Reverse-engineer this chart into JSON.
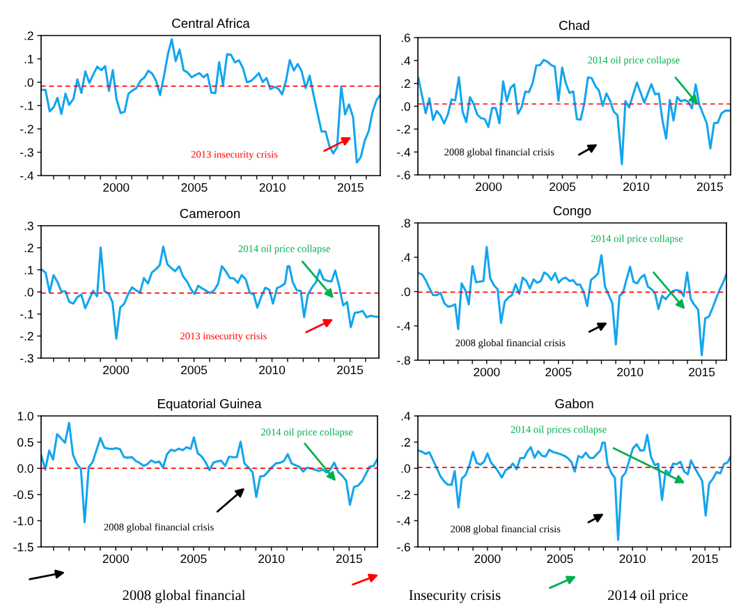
{
  "chart_data": [
    {
      "type": "line",
      "title": "Central Africa",
      "xlim": [
        1995.2,
        2016.9
      ],
      "ylim": [
        -0.4,
        0.2
      ],
      "x": [
        1995.24,
        1995.48,
        1995.75,
        1996.0,
        1996.25,
        1996.5,
        1996.76,
        1997.0,
        1997.27,
        1997.52,
        1997.78,
        1998.03,
        1998.29,
        1998.54,
        1998.79,
        1999.05,
        1999.3,
        1999.54,
        1999.79,
        2000.03,
        2000.29,
        2000.54,
        2000.79,
        2001.05,
        2001.3,
        2001.56,
        2001.81,
        2002.06,
        2002.32,
        2002.57,
        2002.81,
        2003.06,
        2003.32,
        2003.56,
        2003.81,
        2004.06,
        2004.32,
        2004.57,
        2004.83,
        2005.08,
        2005.33,
        2005.59,
        2005.84,
        2006.1,
        2006.35,
        2006.59,
        2006.84,
        2007.1,
        2007.35,
        2007.6,
        2007.86,
        2008.11,
        2008.37,
        2008.62,
        2008.87,
        2009.13,
        2009.38,
        2009.62,
        2009.87,
        2010.13,
        2010.38,
        2010.62,
        2010.87,
        2011.11,
        2011.37,
        2011.62,
        2011.87,
        2012.13,
        2012.38,
        2012.63,
        2012.89,
        2013.14,
        2013.4,
        2013.65,
        2013.89,
        2014.14,
        2014.4,
        2014.65,
        2014.9,
        2015.16,
        2015.4,
        2015.65,
        2015.9,
        2016.16,
        2016.4,
        2016.65,
        2016.9
      ],
      "series": [
        {
          "color": "#12a5ee",
          "values": [
            -0.033,
            -0.033,
            -0.125,
            -0.108,
            -0.067,
            -0.136,
            -0.049,
            -0.097,
            -0.071,
            0.012,
            -0.046,
            0.046,
            -0.003,
            0.033,
            0.067,
            0.052,
            0.069,
            -0.037,
            0.052,
            -0.074,
            -0.132,
            -0.127,
            -0.049,
            -0.035,
            -0.025,
            0.007,
            0.02,
            0.049,
            0.036,
            0.004,
            -0.055,
            0.026,
            0.122,
            0.184,
            0.09,
            0.14,
            0.051,
            0.042,
            0.021,
            0.031,
            0.039,
            0.021,
            0.035,
            -0.045,
            -0.047,
            0.086,
            -0.012,
            0.12,
            0.117,
            0.085,
            0.094,
            0.061,
            0.0,
            0.005,
            0.02,
            0.039,
            0.001,
            0.018,
            -0.03,
            -0.02,
            -0.028,
            -0.052,
            0.007,
            0.095,
            0.05,
            0.078,
            0.047,
            -0.025,
            0.028,
            -0.054,
            -0.134,
            -0.211,
            -0.211,
            -0.274,
            -0.305,
            -0.278,
            -0.019,
            -0.138,
            -0.095,
            -0.15,
            -0.344,
            -0.321,
            -0.252,
            -0.209,
            -0.129,
            -0.078,
            -0.054
          ]
        }
      ],
      "xticks": [
        {
          "value": 1996,
          "label": null
        },
        {
          "value": 1997,
          "label": null
        },
        {
          "value": 1998,
          "label": null
        },
        {
          "value": 1999,
          "label": null
        },
        2000,
        {
          "value": 2001,
          "label": null
        },
        {
          "value": 2002,
          "label": null
        },
        {
          "value": 2003,
          "label": null
        },
        {
          "value": 2004,
          "label": null
        },
        2005,
        {
          "value": 2006,
          "label": null
        },
        {
          "value": 2007,
          "label": null
        },
        {
          "value": 2008,
          "label": null
        },
        {
          "value": 2009,
          "label": null
        },
        2010,
        {
          "value": 2011,
          "label": null
        },
        {
          "value": 2012,
          "label": null
        },
        {
          "value": 2013,
          "label": null
        },
        {
          "value": 2014,
          "label": null
        },
        2015,
        {
          "value": 2016,
          "label": null
        }
      ],
      "yticks": [
        {
          "value": -0.4,
          "label": "-.4"
        },
        {
          "value": -0.3,
          "label": "-.3"
        },
        {
          "value": -0.2,
          "label": "-.2"
        },
        {
          "value": -0.1,
          "label": "-.1"
        },
        {
          "value": 0,
          "label": ".0"
        },
        {
          "value": 0.1,
          "label": ".1"
        },
        {
          "value": 0.2,
          "label": ".2"
        }
      ],
      "ref_lines": [
        {
          "axis": "y",
          "value": -0.017,
          "color": "#ff0000",
          "line_style": "dashed"
        }
      ],
      "annotations": [
        "2013 insecurity crisis"
      ]
    },
    {
      "type": "line",
      "title": "Chad",
      "xlim": [
        1995.2,
        2016.4
      ],
      "ylim": [
        -0.6,
        0.6
      ],
      "x": [
        1995.23,
        1995.73,
        1995.98,
        1996.23,
        1996.48,
        1996.73,
        1996.98,
        1997.23,
        1997.48,
        1997.73,
        1997.98,
        1998.23,
        1998.48,
        1998.73,
        1998.98,
        1999.23,
        1999.48,
        1999.73,
        1999.98,
        2000.23,
        2000.48,
        2000.73,
        2000.98,
        2001.23,
        2001.48,
        2001.73,
        2001.98,
        2002.23,
        2002.48,
        2002.73,
        2002.98,
        2003.23,
        2003.48,
        2003.73,
        2003.98,
        2004.23,
        2004.48,
        2004.73,
        2004.98,
        2005.23,
        2005.48,
        2005.73,
        2005.98,
        2006.23,
        2006.48,
        2006.73,
        2006.98,
        2007.23,
        2007.48,
        2007.73,
        2007.98,
        2008.23,
        2008.48,
        2008.73,
        2009.03,
        2009.27,
        2009.52,
        2010.05,
        2010.55,
        2011.03,
        2011.28,
        2011.53,
        2011.78,
        2012.03,
        2012.28,
        2012.53,
        2012.78,
        2013.03,
        2013.28,
        2013.53,
        2013.78,
        2014.03,
        2014.28,
        2014.53,
        2014.78,
        2015.03,
        2015.28,
        2015.53,
        2015.78,
        2016.03,
        2016.33
      ],
      "series": [
        {
          "color": "#12a5ee",
          "values": [
            0.248,
            -0.061,
            0.069,
            -0.12,
            -0.041,
            -0.081,
            -0.15,
            -0.073,
            0.059,
            0.051,
            0.254,
            -0.047,
            -0.138,
            0.079,
            0.02,
            -0.073,
            -0.104,
            -0.112,
            -0.181,
            -0.016,
            -0.016,
            -0.148,
            0.218,
            0.045,
            0.161,
            0.191,
            -0.065,
            -0.01,
            0.128,
            0.124,
            0.201,
            0.356,
            0.36,
            0.405,
            0.39,
            0.36,
            0.346,
            0.047,
            0.338,
            0.201,
            0.116,
            0.13,
            -0.112,
            -0.118,
            0.024,
            0.252,
            0.246,
            0.177,
            0.136,
            0.004,
            0.112,
            0.047,
            -0.047,
            -0.079,
            -0.506,
            0.045,
            -0.01,
            0.207,
            0.031,
            0.193,
            0.104,
            0.112,
            -0.122,
            -0.283,
            0.055,
            -0.124,
            0.081,
            0.043,
            0.055,
            0.039,
            -0.018,
            0.191,
            0.014,
            -0.067,
            -0.148,
            -0.368,
            -0.148,
            -0.144,
            -0.063,
            -0.039,
            -0.039
          ]
        }
      ],
      "xticks": [
        {
          "value": 1996,
          "label": null
        },
        {
          "value": 1997,
          "label": null
        },
        {
          "value": 1998,
          "label": null
        },
        {
          "value": 1999,
          "label": null
        },
        2000,
        {
          "value": 2001,
          "label": null
        },
        {
          "value": 2002,
          "label": null
        },
        {
          "value": 2003,
          "label": null
        },
        {
          "value": 2004,
          "label": null
        },
        2005,
        {
          "value": 2006,
          "label": null
        },
        {
          "value": 2007,
          "label": null
        },
        {
          "value": 2008,
          "label": null
        },
        {
          "value": 2009,
          "label": null
        },
        2010,
        {
          "value": 2011,
          "label": null
        },
        {
          "value": 2012,
          "label": null
        },
        {
          "value": 2013,
          "label": null
        },
        {
          "value": 2014,
          "label": null
        },
        2015,
        {
          "value": 2016,
          "label": null
        }
      ],
      "yticks": [
        {
          "value": -0.6,
          "label": "-.6"
        },
        {
          "value": -0.4,
          "label": "-.4"
        },
        {
          "value": -0.2,
          "label": "-.2"
        },
        {
          "value": 0,
          "label": ".0"
        },
        {
          "value": 0.2,
          "label": ".2"
        },
        {
          "value": 0.4,
          "label": ".4"
        },
        {
          "value": 0.6,
          "label": ".6"
        }
      ],
      "ref_lines": [
        {
          "axis": "y",
          "value": 0.02,
          "color": "#ff0000",
          "line_style": "dashed"
        }
      ],
      "annotations": [
        {
          "text": "2014 oil price collapse",
          "x": 2014.28,
          "y": 0.0
        },
        "2008 global financial crisis"
      ]
    },
    {
      "type": "line",
      "title": "Cameroon",
      "xlim": [
        1995.2,
        2016.85
      ],
      "ylim": [
        -0.3,
        0.3
      ],
      "x": [
        1995.24,
        1995.49,
        1995.75,
        1996.0,
        1996.25,
        1996.5,
        1996.76,
        1997.0,
        1997.27,
        1997.52,
        1997.78,
        1998.03,
        1998.29,
        1998.54,
        1998.79,
        1999.02,
        1999.27,
        1999.52,
        1999.78,
        2000.02,
        2000.27,
        2000.52,
        2000.78,
        2001.03,
        2001.29,
        2001.54,
        2001.79,
        2002.05,
        2002.3,
        2002.56,
        2002.81,
        2003.03,
        2003.29,
        2003.54,
        2003.79,
        2004.05,
        2004.3,
        2004.56,
        2004.81,
        2005.03,
        2005.27,
        2005.52,
        2005.78,
        2006.03,
        2006.29,
        2006.54,
        2006.79,
        2007.05,
        2007.3,
        2007.56,
        2007.81,
        2008.06,
        2008.32,
        2008.57,
        2008.83,
        2009.06,
        2009.32,
        2009.57,
        2009.83,
        2010.06,
        2010.32,
        2010.57,
        2010.83,
        2011.0,
        2011.11,
        2011.33,
        2011.59,
        2011.84,
        2012.06,
        2012.3,
        2012.56,
        2012.81,
        2013.05,
        2013.3,
        2013.56,
        2013.81,
        2014.05,
        2014.3,
        2014.56,
        2014.81,
        2015.05,
        2015.3,
        2015.56,
        2015.81,
        2016.06,
        2016.32,
        2016.81
      ],
      "series": [
        {
          "color": "#12a5ee",
          "values": [
            0.101,
            0.087,
            -0.002,
            0.076,
            0.045,
            0.002,
            0.003,
            -0.045,
            -0.053,
            -0.024,
            -0.012,
            -0.074,
            -0.033,
            0.005,
            -0.02,
            0.201,
            0.002,
            -0.007,
            -0.047,
            -0.212,
            -0.071,
            -0.054,
            -0.011,
            0.021,
            0.007,
            -0.003,
            0.063,
            0.038,
            0.088,
            0.103,
            0.122,
            0.205,
            0.126,
            0.108,
            0.094,
            0.116,
            0.071,
            0.046,
            0.011,
            -0.009,
            0.028,
            0.016,
            0.005,
            -0.005,
            0.007,
            0.036,
            0.117,
            0.092,
            0.063,
            0.061,
            0.041,
            0.076,
            0.057,
            -0.003,
            -0.012,
            -0.071,
            -0.02,
            0.019,
            0.01,
            -0.053,
            0.018,
            0.025,
            0.038,
            0.117,
            0.117,
            0.044,
            0.007,
            0.005,
            -0.114,
            -0.012,
            0.02,
            0.043,
            0.1,
            0.057,
            0.05,
            0.047,
            0.097,
            0.027,
            -0.061,
            -0.046,
            -0.16,
            -0.095,
            -0.092,
            -0.086,
            -0.115,
            -0.108,
            -0.114
          ]
        }
      ],
      "xticks": [
        {
          "value": 1996,
          "label": null
        },
        {
          "value": 1997,
          "label": null
        },
        {
          "value": 1998,
          "label": null
        },
        {
          "value": 1999,
          "label": null
        },
        2000,
        {
          "value": 2001,
          "label": null
        },
        {
          "value": 2002,
          "label": null
        },
        {
          "value": 2003,
          "label": null
        },
        {
          "value": 2004,
          "label": null
        },
        2005,
        {
          "value": 2006,
          "label": null
        },
        {
          "value": 2007,
          "label": null
        },
        {
          "value": 2008,
          "label": null
        },
        {
          "value": 2009,
          "label": null
        },
        2010,
        {
          "value": 2011,
          "label": null
        },
        {
          "value": 2012,
          "label": null
        },
        {
          "value": 2013,
          "label": null
        },
        {
          "value": 2014,
          "label": null
        },
        2015,
        {
          "value": 2016,
          "label": null
        }
      ],
      "yticks": [
        {
          "value": -0.3,
          "label": "-.3"
        },
        {
          "value": -0.2,
          "label": "-.2"
        },
        {
          "value": -0.1,
          "label": "-.1"
        },
        {
          "value": 0,
          "label": ".0"
        },
        {
          "value": 0.1,
          "label": ".1"
        },
        {
          "value": 0.2,
          "label": ".2"
        },
        {
          "value": 0.3,
          "label": ".3"
        }
      ],
      "ref_lines": [
        {
          "axis": "y",
          "value": -0.005,
          "color": "#ff0000",
          "line_style": "dashed"
        }
      ],
      "annotations": [
        "2014 oil price collapse",
        "2013 insecurity crisis"
      ]
    },
    {
      "type": "line",
      "title": "Congo",
      "xlim": [
        1995.2,
        2016.72
      ],
      "ylim": [
        -0.8,
        0.8
      ],
      "x": [
        1995.23,
        1995.49,
        1995.74,
        1996.0,
        1996.26,
        1996.52,
        1996.78,
        1997.04,
        1997.3,
        1997.56,
        1997.8,
        1998.01,
        1998.25,
        1998.51,
        1998.75,
        1999.01,
        1999.26,
        1999.51,
        1999.77,
        2000.0,
        2000.24,
        2000.5,
        2000.76,
        2001.0,
        2001.26,
        2001.52,
        2001.76,
        2002.02,
        2002.27,
        2002.51,
        2002.77,
        2003.01,
        2003.27,
        2003.51,
        2003.77,
        2004.01,
        2004.27,
        2004.51,
        2004.77,
        2005.02,
        2005.27,
        2005.52,
        2005.78,
        2006.02,
        2006.28,
        2006.52,
        2006.78,
        2007.01,
        2007.27,
        2007.51,
        2007.77,
        2008.0,
        2008.25,
        2008.5,
        2008.76,
        2009.01,
        2009.26,
        2009.51,
        2009.74,
        2010.0,
        2010.24,
        2010.5,
        2010.74,
        2011.0,
        2011.24,
        2011.5,
        2011.75,
        2011.98,
        2012.23,
        2012.48,
        2012.74,
        2013.0,
        2013.24,
        2013.5,
        2013.74,
        2013.98,
        2014.23,
        2014.49,
        2014.75,
        2015.0,
        2015.24,
        2015.5,
        2015.76,
        2016.0,
        2016.25,
        2016.5,
        2016.71
      ],
      "series": [
        {
          "color": "#12a5ee",
          "values": [
            0.216,
            0.2,
            0.135,
            0.041,
            -0.041,
            -0.043,
            -0.014,
            -0.135,
            -0.176,
            -0.168,
            -0.149,
            -0.438,
            0.095,
            0.014,
            -0.149,
            0.297,
            0.108,
            0.116,
            0.122,
            0.519,
            0.157,
            0.076,
            0.027,
            -0.365,
            -0.116,
            -0.068,
            -0.043,
            0.086,
            -0.027,
            0.162,
            0.122,
            0.035,
            0.143,
            0.103,
            0.122,
            0.222,
            0.195,
            0.135,
            0.216,
            0.103,
            0.149,
            0.162,
            0.122,
            0.135,
            0.081,
            0.081,
            -0.014,
            -0.168,
            0.135,
            0.168,
            0.211,
            0.424,
            0.059,
            -0.035,
            -0.135,
            -0.616,
            -0.049,
            -0.014,
            0.135,
            0.289,
            0.114,
            0.095,
            0.162,
            0.195,
            0.059,
            0.027,
            -0.027,
            -0.203,
            -0.049,
            -0.089,
            -0.035,
            0.008,
            0.019,
            0.008,
            -0.054,
            0.224,
            -0.086,
            -0.157,
            -0.211,
            -0.743,
            -0.311,
            -0.292,
            -0.189,
            -0.081,
            0.022,
            0.108,
            0.203
          ]
        }
      ],
      "xticks": [
        {
          "value": 1996,
          "label": null
        },
        {
          "value": 1997,
          "label": null
        },
        {
          "value": 1998,
          "label": null
        },
        {
          "value": 1999,
          "label": null
        },
        2000,
        {
          "value": 2001,
          "label": null
        },
        {
          "value": 2002,
          "label": null
        },
        {
          "value": 2003,
          "label": null
        },
        {
          "value": 2004,
          "label": null
        },
        2005,
        {
          "value": 2006,
          "label": null
        },
        {
          "value": 2007,
          "label": null
        },
        {
          "value": 2008,
          "label": null
        },
        {
          "value": 2009,
          "label": null
        },
        2010,
        {
          "value": 2011,
          "label": null
        },
        {
          "value": 2012,
          "label": null
        },
        {
          "value": 2013,
          "label": null
        },
        {
          "value": 2014,
          "label": null
        },
        2015,
        {
          "value": 2016,
          "label": null
        }
      ],
      "yticks": [
        {
          "value": -0.8,
          "label": "-.8"
        },
        {
          "value": -0.4,
          "label": "-.4"
        },
        {
          "value": 0,
          "label": ".0"
        },
        {
          "value": 0.4,
          "label": ".4"
        },
        {
          "value": 0.8,
          "label": ".8"
        }
      ],
      "ref_lines": [
        {
          "axis": "y",
          "value": -0.007,
          "color": "#ff0000",
          "line_style": "dashed"
        }
      ],
      "annotations": [
        "2014 oil price collapse",
        "2008 global financial crisis"
      ]
    },
    {
      "type": "line",
      "title": "Equatorial Guinea",
      "xlim": [
        1995.2,
        2016.82
      ],
      "ylim": [
        -1.5,
        1.0
      ],
      "x": [
        1995.21,
        1995.47,
        1995.72,
        1995.97,
        1996.23,
        1996.49,
        1996.74,
        1997.0,
        1997.25,
        1997.51,
        1997.76,
        1998.0,
        1998.26,
        1998.51,
        1998.77,
        1999.01,
        1999.27,
        1999.52,
        1999.78,
        2000.02,
        2000.27,
        2000.53,
        2000.78,
        2001.04,
        2001.28,
        2001.53,
        2001.79,
        2002.03,
        2002.28,
        2002.54,
        2002.8,
        2003.04,
        2003.29,
        2003.55,
        2003.79,
        2004.04,
        2004.3,
        2004.55,
        2004.81,
        2005.02,
        2005.27,
        2005.53,
        2005.77,
        2006.02,
        2006.28,
        2006.52,
        2006.77,
        2007.03,
        2007.28,
        2007.52,
        2007.78,
        2008.02,
        2008.27,
        2008.53,
        2008.79,
        2009.03,
        2009.28,
        2009.54,
        2009.79,
        2010.05,
        2010.29,
        2010.55,
        2010.81,
        2011.05,
        2011.3,
        2011.56,
        2011.79,
        2012.04,
        2012.3,
        2012.56,
        2012.8,
        2013.05,
        2013.31,
        2013.55,
        2013.81,
        2014.04,
        2014.3,
        2014.56,
        2014.81,
        2015.05,
        2015.31,
        2015.56,
        2015.82,
        2016.06,
        2016.31,
        2016.57,
        2016.81
      ],
      "series": [
        {
          "color": "#12a5ee",
          "values": [
            0.251,
            -0.024,
            0.337,
            0.166,
            0.655,
            0.569,
            0.489,
            0.868,
            0.261,
            0.081,
            -0.014,
            -1.029,
            0.024,
            0.119,
            0.356,
            0.579,
            0.394,
            0.375,
            0.37,
            0.384,
            0.365,
            0.213,
            0.204,
            0.213,
            0.142,
            0.104,
            0.047,
            0.081,
            0.152,
            0.109,
            0.128,
            0.014,
            0.27,
            0.356,
            0.332,
            0.375,
            0.346,
            0.403,
            0.37,
            0.593,
            0.285,
            0.223,
            0.119,
            -0.033,
            0.109,
            0.133,
            0.147,
            0.047,
            0.223,
            0.213,
            0.213,
            0.508,
            0.095,
            0.014,
            -0.071,
            -0.546,
            -0.157,
            -0.142,
            -0.062,
            0.024,
            0.095,
            0.104,
            0.142,
            0.27,
            0.095,
            0.057,
            0.033,
            -0.062,
            0.014,
            -0.005,
            -0.024,
            -0.052,
            -0.024,
            -0.081,
            -0.014,
            0.109,
            -0.071,
            -0.142,
            -0.237,
            -0.697,
            -0.356,
            -0.332,
            -0.251,
            -0.119,
            0.033,
            0.047,
            0.176
          ]
        }
      ],
      "xticks": [
        {
          "value": 1996,
          "label": null
        },
        {
          "value": 1997,
          "label": null
        },
        {
          "value": 1998,
          "label": null
        },
        {
          "value": 1999,
          "label": null
        },
        2000,
        {
          "value": 2001,
          "label": null
        },
        {
          "value": 2002,
          "label": null
        },
        {
          "value": 2003,
          "label": null
        },
        {
          "value": 2004,
          "label": null
        },
        2005,
        {
          "value": 2006,
          "label": null
        },
        {
          "value": 2007,
          "label": null
        },
        {
          "value": 2008,
          "label": null
        },
        {
          "value": 2009,
          "label": null
        },
        2010,
        {
          "value": 2011,
          "label": null
        },
        {
          "value": 2012,
          "label": null
        },
        {
          "value": 2013,
          "label": null
        },
        {
          "value": 2014,
          "label": null
        },
        2015,
        {
          "value": 2016,
          "label": null
        }
      ],
      "yticks": [
        {
          "value": -1.5,
          "label": "-1.5"
        },
        {
          "value": -1.0,
          "label": "-1.0"
        },
        {
          "value": -0.5,
          "label": "-0.5"
        },
        {
          "value": 0,
          "label": "0.0"
        },
        {
          "value": 0.5,
          "label": "0.5"
        },
        {
          "value": 1.0,
          "label": "1.0"
        }
      ],
      "ref_lines": [
        {
          "axis": "y",
          "value": 0.0,
          "color": "#ff0000",
          "line_style": "dashed"
        }
      ],
      "annotations": [
        "2014 oil price collapse",
        "2008 global financial crisis",
        "2008 global financial"
      ]
    },
    {
      "type": "line",
      "title": "Gabon",
      "xlim": [
        1995.2,
        2016.77
      ],
      "ylim": [
        -0.6,
        0.4
      ],
      "x": [
        1995.22,
        1995.48,
        1995.73,
        1995.99,
        1996.24,
        1996.5,
        1996.75,
        1997.01,
        1997.26,
        1997.52,
        1997.74,
        1998.0,
        1998.23,
        1998.49,
        1998.74,
        1999.0,
        1999.25,
        1999.51,
        1999.76,
        2000.0,
        2000.25,
        2000.51,
        2000.76,
        2000.99,
        2001.24,
        2001.5,
        2001.75,
        2002.01,
        2002.26,
        2002.52,
        2002.77,
        2002.99,
        2003.25,
        2003.5,
        2003.76,
        2004.01,
        2004.27,
        2004.52,
        2004.78,
        2005.03,
        2005.29,
        2005.54,
        2005.8,
        2006.02,
        2006.27,
        2006.53,
        2006.78,
        2007.04,
        2007.29,
        2007.55,
        2007.8,
        2007.93,
        2008.09,
        2008.28,
        2008.54,
        2008.79,
        2009.01,
        2009.27,
        2009.52,
        2009.78,
        2010.03,
        2010.29,
        2010.54,
        2010.8,
        2011.02,
        2011.27,
        2011.53,
        2011.78,
        2012.04,
        2012.29,
        2012.55,
        2012.8,
        2013.06,
        2013.31,
        2013.57,
        2013.82,
        2014.04,
        2014.3,
        2014.55,
        2014.81,
        2015.05,
        2015.29,
        2015.54,
        2015.8,
        2016.06,
        2016.31,
        2016.57,
        2016.77
      ],
      "series": [
        {
          "color": "#12a5ee",
          "values": [
            0.135,
            0.127,
            0.11,
            0.122,
            0.064,
            0.002,
            -0.06,
            -0.099,
            -0.124,
            -0.127,
            -0.021,
            -0.299,
            -0.078,
            -0.051,
            0.019,
            0.126,
            0.042,
            0.028,
            0.05,
            0.113,
            0.042,
            0.011,
            -0.028,
            -0.071,
            -0.016,
            0.002,
            0.037,
            -0.007,
            0.078,
            0.078,
            0.131,
            0.161,
            0.081,
            0.131,
            0.096,
            0.09,
            0.142,
            0.124,
            0.117,
            0.108,
            0.096,
            0.078,
            0.046,
            -0.025,
            0.094,
            0.081,
            0.12,
            0.081,
            0.078,
            0.108,
            0.138,
            0.196,
            0.196,
            0.032,
            -0.034,
            -0.074,
            -0.547,
            -0.069,
            -0.034,
            0.06,
            0.152,
            0.184,
            0.135,
            0.138,
            0.255,
            0.09,
            0.025,
            0.035,
            -0.241,
            -0.016,
            -0.042,
            0.035,
            0.032,
            0.05,
            -0.025,
            -0.046,
            0.06,
            0.002,
            -0.046,
            -0.096,
            -0.361,
            -0.117,
            -0.081,
            -0.028,
            -0.039,
            0.032,
            0.046,
            0.09
          ]
        }
      ],
      "xticks": [
        {
          "value": 1996,
          "label": null
        },
        {
          "value": 1997,
          "label": null
        },
        {
          "value": 1998,
          "label": null
        },
        {
          "value": 1999,
          "label": null
        },
        2000,
        {
          "value": 2001,
          "label": null
        },
        {
          "value": 2002,
          "label": null
        },
        {
          "value": 2003,
          "label": null
        },
        {
          "value": 2004,
          "label": null
        },
        2005,
        {
          "value": 2006,
          "label": null
        },
        {
          "value": 2007,
          "label": null
        },
        {
          "value": 2008,
          "label": null
        },
        {
          "value": 2009,
          "label": null
        },
        2010,
        {
          "value": 2011,
          "label": null
        },
        {
          "value": 2012,
          "label": null
        },
        {
          "value": 2013,
          "label": null
        },
        {
          "value": 2014,
          "label": null
        },
        2015,
        {
          "value": 2016,
          "label": null
        }
      ],
      "yticks": [
        {
          "value": -0.6,
          "label": "-.6"
        },
        {
          "value": -0.4,
          "label": "-.4"
        },
        {
          "value": -0.2,
          "label": "-.2"
        },
        {
          "value": 0,
          "label": ".0"
        },
        {
          "value": 0.2,
          "label": ".2"
        },
        {
          "value": 0.4,
          "label": ".4"
        }
      ],
      "ref_lines": [
        {
          "axis": "y",
          "value": 0.007,
          "color": "#ff0000",
          "line_style": "dashed"
        }
      ],
      "annotations": [
        "2014 oil prices collapse",
        "2008 global financial crisis",
        "Insecurity crisis",
        "2014 oil price"
      ]
    }
  ]
}
